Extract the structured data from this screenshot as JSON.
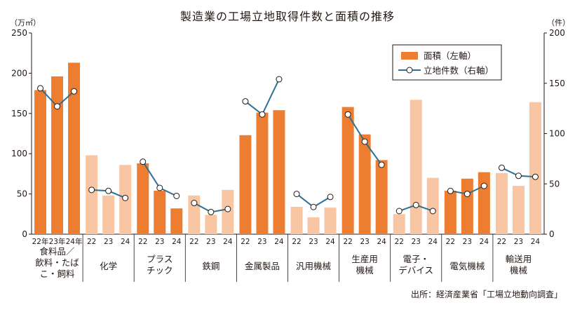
{
  "chart_data": {
    "type": "bar",
    "title": "製造業の工場立地取得件数と面積の推移",
    "y_left_unit": "（万㎡）",
    "y_right_unit": "（件）",
    "ylim_left": [
      0,
      250
    ],
    "ylim_right": [
      0,
      200
    ],
    "yticks_left": [
      "0",
      "50",
      "100",
      "150",
      "200",
      "250"
    ],
    "yticks_right": [
      "0",
      "50",
      "100",
      "150",
      "200"
    ],
    "legend": {
      "area": "面積（左軸）",
      "count": "立地件数（右軸）"
    },
    "source": "出所：経済産業省「工場立地動向調査」",
    "colors": {
      "dark_bar": "#ed7d31",
      "light_bar": "#f9c6a3",
      "line": "#2e6f95"
    },
    "groups": [
      {
        "name": [
          "食料品／",
          "飲料・たば",
          "こ・飼料"
        ],
        "years": [
          "22年",
          "23年",
          "24年"
        ],
        "highlight": true,
        "area": [
          179,
          196,
          213
        ],
        "count": [
          145,
          127,
          142
        ]
      },
      {
        "name": [
          "化学"
        ],
        "years": [
          "22",
          "23",
          "24"
        ],
        "highlight": false,
        "area": [
          98,
          48,
          86
        ],
        "count": [
          44,
          43,
          36
        ]
      },
      {
        "name": [
          "プラス",
          "チック"
        ],
        "years": [
          "22",
          "23",
          "24"
        ],
        "highlight": true,
        "area": [
          88,
          54,
          32
        ],
        "count": [
          72,
          46,
          38
        ]
      },
      {
        "name": [
          "鉄鋼"
        ],
        "years": [
          "22",
          "23",
          "24"
        ],
        "highlight": false,
        "area": [
          48,
          24,
          55
        ],
        "count": [
          31,
          22,
          25
        ]
      },
      {
        "name": [
          "金属製品"
        ],
        "years": [
          "22",
          "23",
          "24"
        ],
        "highlight": true,
        "area": [
          123,
          151,
          154
        ],
        "count": [
          132,
          119,
          154
        ]
      },
      {
        "name": [
          "汎用機械"
        ],
        "years": [
          "22",
          "23",
          "24"
        ],
        "highlight": false,
        "area": [
          34,
          21,
          33
        ],
        "count": [
          40,
          27,
          37
        ]
      },
      {
        "name": [
          "生産用",
          "機械"
        ],
        "years": [
          "22",
          "23",
          "24"
        ],
        "highlight": true,
        "area": [
          158,
          124,
          92
        ],
        "count": [
          119,
          92,
          69
        ]
      },
      {
        "name": [
          "電子・",
          "デバイス"
        ],
        "years": [
          "22",
          "23",
          "24"
        ],
        "highlight": false,
        "area": [
          25,
          167,
          70
        ],
        "count": [
          23,
          29,
          23
        ]
      },
      {
        "name": [
          "電気機械"
        ],
        "years": [
          "22",
          "23",
          "24"
        ],
        "highlight": true,
        "area": [
          54,
          69,
          77
        ],
        "count": [
          43,
          40,
          48
        ]
      },
      {
        "name": [
          "輸送用",
          "機械"
        ],
        "years": [
          "22",
          "23",
          "24"
        ],
        "highlight": false,
        "area": [
          76,
          60,
          164
        ],
        "count": [
          66,
          58,
          57
        ]
      }
    ]
  }
}
